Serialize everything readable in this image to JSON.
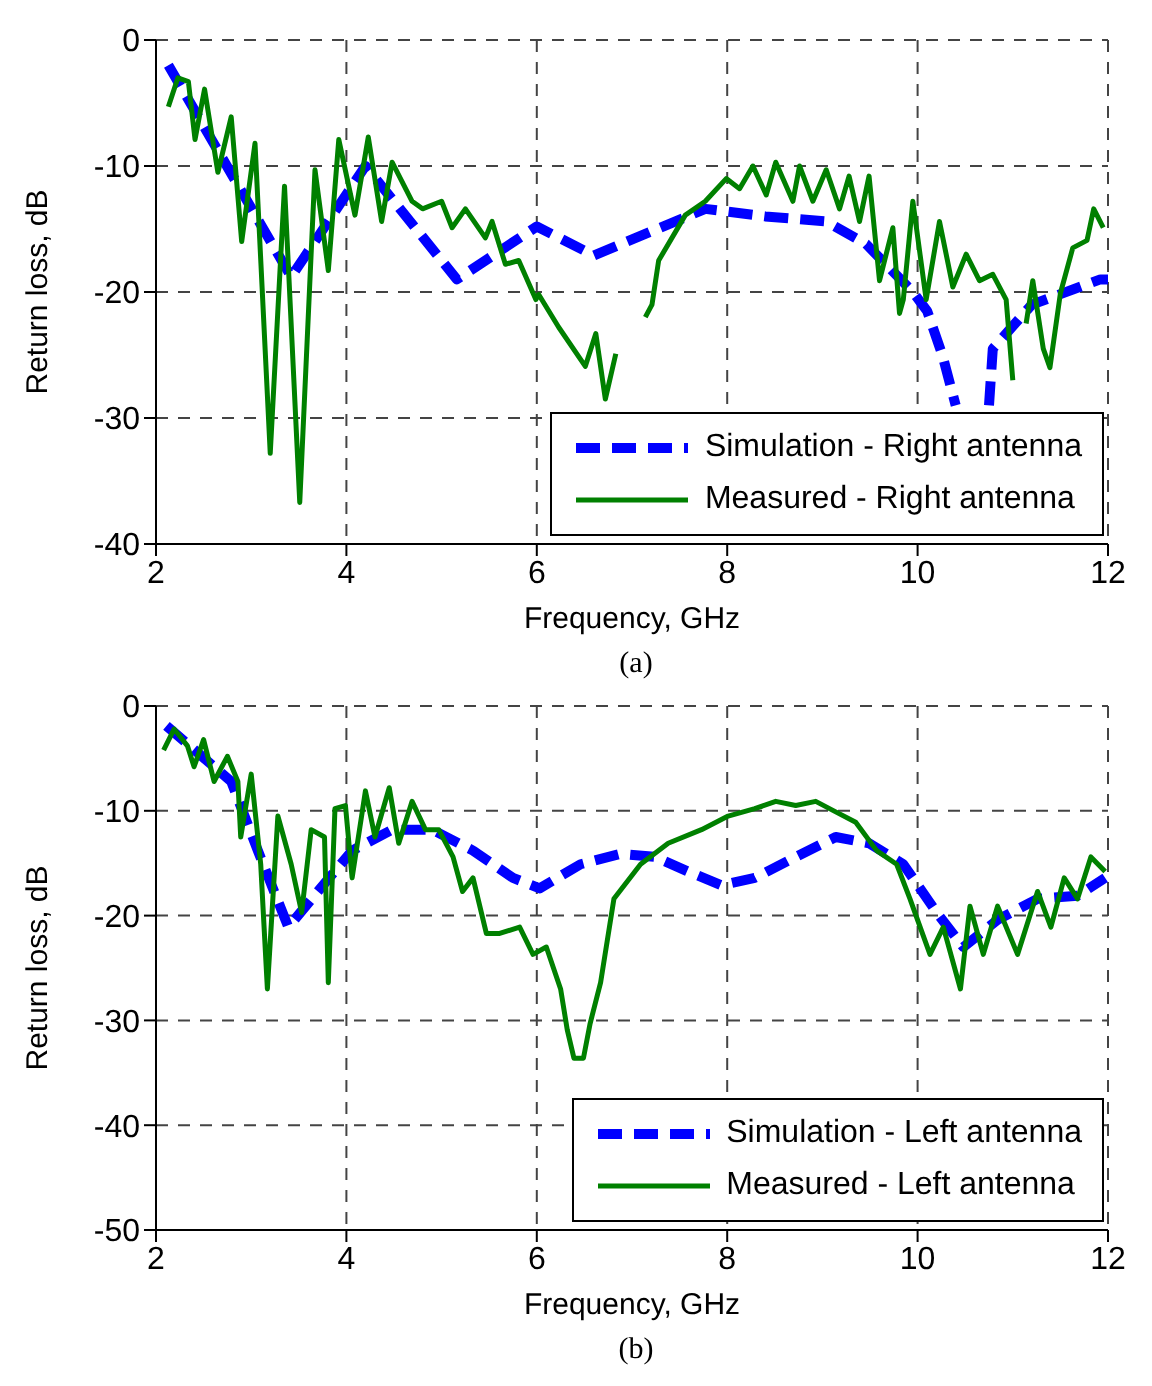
{
  "chart_data": [
    {
      "type": "line",
      "xlabel": "Frequency, GHz",
      "ylabel": "Return loss, dB",
      "annotations": [
        "(a)"
      ],
      "xlim": [
        2,
        12
      ],
      "xticks": [
        2,
        4,
        6,
        8,
        10,
        12
      ],
      "ylim": [
        -40,
        0
      ],
      "yticks": [
        -40,
        -30,
        -20,
        -10,
        0
      ],
      "grid": true,
      "legend": "bottom right",
      "series": [
        {
          "name": "Simulation - Right antenna",
          "color": "#0000ff",
          "line_style": "dashed",
          "x": [
            2.13,
            3.42,
            4.2,
            5.16,
            6.0,
            6.6,
            7.77,
            8.4,
            9.04,
            9.46,
            9.95,
            10.1,
            10.26,
            10.4,
            10.5,
            10.75,
            10.79,
            11.2,
            11.92,
            12
          ],
          "values": [
            -2,
            -18.8,
            -10,
            -19,
            -14.8,
            -17.1,
            -13.4,
            -14,
            -14.4,
            -16.2,
            -20,
            -21.5,
            -25,
            -29,
            null,
            -29,
            -24.5,
            -21,
            -19,
            -19
          ]
        },
        {
          "name": "Measured - Right antenna",
          "color": "#008000",
          "line_style": "solid",
          "x": [
            2.13,
            2.23,
            2.34,
            2.41,
            2.51,
            2.65,
            2.79,
            2.9,
            3.04,
            3.2,
            3.35,
            3.51,
            3.67,
            3.81,
            3.92,
            4.09,
            4.23,
            4.37,
            4.48,
            4.69,
            4.8,
            5.0,
            5.11,
            5.25,
            5.46,
            5.53,
            5.67,
            5.81,
            5.99,
            6.02,
            6.23,
            6.51,
            6.62,
            6.72,
            6.83,
            6.95,
            7.14,
            7.21,
            7.28,
            7.56,
            7.77,
            7.99,
            8.13,
            8.27,
            8.41,
            8.51,
            8.69,
            8.76,
            8.9,
            9.04,
            9.18,
            9.28,
            9.39,
            9.49,
            9.6,
            9.74,
            9.81,
            9.85,
            9.95,
            10.09,
            10.23,
            10.37,
            10.51,
            10.65,
            10.79,
            10.93,
            11.0,
            11.07,
            11.14,
            11.21,
            11.32,
            11.39,
            11.5,
            11.63,
            11.78,
            11.85,
            11.95
          ],
          "values": [
            -5.3,
            -3,
            -3.3,
            -7.9,
            -3.9,
            -10.5,
            -6.1,
            -16,
            -8.2,
            -32.8,
            -11.6,
            -36.7,
            -10.3,
            -18.3,
            -7.9,
            -13.9,
            -7.7,
            -14.4,
            -9.7,
            -12.8,
            -13.4,
            -12.8,
            -14.9,
            -13.4,
            -15.7,
            -14.4,
            -17.8,
            -17.5,
            -20.6,
            -20.2,
            -22.8,
            -25.9,
            -23.3,
            -28.5,
            -24.9,
            null,
            -22,
            -21,
            -17.5,
            -13.9,
            -12.8,
            -11,
            -11.8,
            -10,
            -12.3,
            -9.7,
            -12.8,
            -10,
            -12.8,
            -10.3,
            -13.4,
            -10.8,
            -14.4,
            -10.8,
            -19.1,
            -14.9,
            -21.7,
            -20.6,
            -12.8,
            -20.6,
            -14.4,
            -19.6,
            -17,
            -19.1,
            -18.6,
            -20.6,
            -27,
            null,
            -22.5,
            -19.1,
            -24.5,
            -26,
            -20.1,
            -16.5,
            -15.9,
            -13.4,
            -14.9
          ]
        }
      ]
    },
    {
      "type": "line",
      "xlabel": "Frequency, GHz",
      "ylabel": "Return loss, dB",
      "annotations": [
        "(b)"
      ],
      "xlim": [
        2,
        12
      ],
      "xticks": [
        2,
        4,
        6,
        8,
        10,
        12
      ],
      "ylim": [
        -50,
        0
      ],
      "yticks": [
        -50,
        -40,
        -30,
        -20,
        -10,
        0
      ],
      "grid": true,
      "legend": "bottom right",
      "series": [
        {
          "name": "Simulation - Left antenna",
          "color": "#0000ff",
          "line_style": "dashed",
          "x": [
            2.11,
            2.79,
            3.07,
            3.39,
            3.7,
            4.06,
            4.48,
            4.9,
            5.33,
            5.75,
            6.03,
            6.46,
            6.88,
            7.24,
            7.59,
            7.94,
            8.29,
            8.72,
            9.14,
            9.49,
            9.85,
            10.2,
            10.48,
            10.84,
            11.26,
            11.68,
            11.97
          ],
          "values": [
            -1.9,
            -7.2,
            -13.8,
            -21.1,
            -17.7,
            -13.8,
            -11.8,
            -11.8,
            -13.8,
            -16.4,
            -17.4,
            -15.1,
            -14.1,
            -14.4,
            -15.8,
            -17.1,
            -16.4,
            -14.4,
            -12.5,
            -13.1,
            -15.1,
            -19.7,
            -23,
            -20.4,
            -18.4,
            -18.1,
            -16.4
          ]
        },
        {
          "name": "Measured - Left antenna",
          "color": "#008000",
          "line_style": "solid",
          "x": [
            2.08,
            2.19,
            2.33,
            2.4,
            2.5,
            2.61,
            2.75,
            2.86,
            2.89,
            3.0,
            3.1,
            3.17,
            3.28,
            3.42,
            3.53,
            3.63,
            3.77,
            3.81,
            3.88,
            3.99,
            4.06,
            4.2,
            4.3,
            4.45,
            4.55,
            4.69,
            4.83,
            4.97,
            5.12,
            5.22,
            5.33,
            5.47,
            5.61,
            5.82,
            5.96,
            6.1,
            6.25,
            6.32,
            6.39,
            6.49,
            6.56,
            6.67,
            6.81,
            7.09,
            7.38,
            7.73,
            8.01,
            8.29,
            8.51,
            8.72,
            8.93,
            9.14,
            9.35,
            9.57,
            9.78,
            9.92,
            10.13,
            10.27,
            10.45,
            10.55,
            10.69,
            10.84,
            11.05,
            11.26,
            11.4,
            11.54,
            11.68,
            11.82,
            11.97
          ],
          "values": [
            -4.2,
            -2.2,
            -3.8,
            -5.8,
            -3.2,
            -7.2,
            -4.8,
            -7.2,
            -12.5,
            -6.5,
            -15.1,
            -27,
            -10.5,
            -15.1,
            -19.7,
            -11.8,
            -12.5,
            -26.4,
            -9.8,
            -9.5,
            -16.4,
            -8.1,
            -12.5,
            -7.8,
            -13.1,
            -9.1,
            -11.8,
            -11.8,
            -14.4,
            -17.7,
            -16.4,
            -21.7,
            -21.7,
            -21.1,
            -23.7,
            -23,
            -27,
            -30.9,
            -33.6,
            -33.6,
            -30.3,
            -26.4,
            -18.4,
            -15.1,
            -13.1,
            -11.8,
            -10.5,
            -9.8,
            -9.1,
            -9.5,
            -9.1,
            -10.1,
            -11.1,
            -13.8,
            -15.1,
            -18.4,
            -23.7,
            -21.1,
            -27,
            -19.1,
            -23.7,
            -19.1,
            -23.7,
            -17.7,
            -21.1,
            -16.4,
            -18.4,
            -14.4,
            -15.8
          ]
        }
      ]
    }
  ]
}
